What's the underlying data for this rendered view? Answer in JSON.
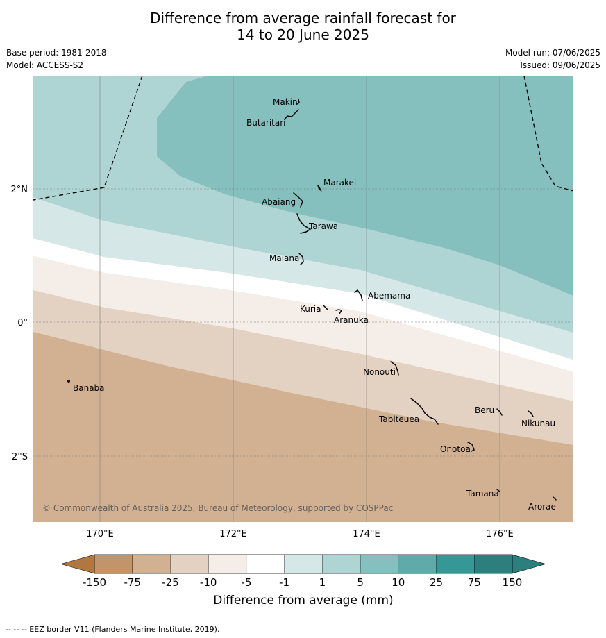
{
  "title": {
    "line1": "Difference from average rainfall forecast for",
    "line2": "14 to 20 June 2025"
  },
  "meta": {
    "base_period": "Base period: 1981-2018",
    "model": "Model: ACCESS-S2",
    "model_run": "Model run: 07/06/2025",
    "issued": "Issued: 09/06/2025"
  },
  "map": {
    "lat_labels": [
      "2°N",
      "0°",
      "2°S"
    ],
    "lon_labels": [
      "170°E",
      "172°E",
      "174°E",
      "176°E"
    ],
    "copyright": "© Commonwealth of Australia 2025, Bureau of Meteorology, supported by COSPPac",
    "places": {
      "makin": "Makin",
      "butaritari": "Butaritari",
      "marakei": "Marakei",
      "abaiang": "Abaiang",
      "tarawa": "Tarawa",
      "maiana": "Maiana",
      "abemama": "Abemama",
      "kuria": "Kuria",
      "aranuka": "Aranuka",
      "nonouti": "Nonouti",
      "banaba": "Banaba",
      "beru": "Beru",
      "tabiteuea": "Tabiteuea",
      "nikunau": "Nikunau",
      "onotoa": "Onotoa",
      "tamana": "Tamana",
      "arorae": "Arorae"
    }
  },
  "colorbar": {
    "ticks": [
      "-150",
      "-75",
      "-25",
      "-10",
      "-5",
      "-1",
      "1",
      "5",
      "10",
      "25",
      "75",
      "150"
    ],
    "colors": [
      "#b07840",
      "#c2946a",
      "#d2b192",
      "#e3d1c1",
      "#f4ede8",
      "#ffffff",
      "#d5e8e7",
      "#aed5d4",
      "#85bfbe",
      "#5eaba9",
      "#359796",
      "#2d7f7e"
    ],
    "label": "Difference from average (mm)"
  },
  "footer": "--  --  -- EEZ border V11 (Flanders Marine Institute, 2019)."
}
